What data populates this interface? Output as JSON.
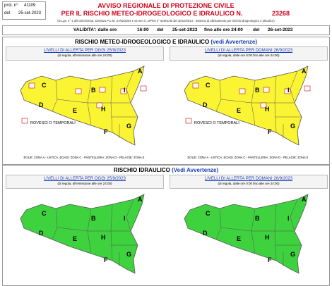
{
  "header": {
    "prot_label": "prot. n°",
    "prot_value": "41109",
    "del_label": "del",
    "del_value": "25-set-2023",
    "title_1": "AVVISO REGIONALE DI PROTEZIONE CIVILE",
    "title_2": "PER IL RISCHIO METEO-IDROGEOLOGICO E IDRAULICO N.",
    "number": "23268",
    "legal_note": "(D.Lgs. n° 1 del 02/01/2018, Direttiva P.C.M. 27/02/2004 e ss.mm.ii., DPRS n° 626/GAB del 30/10/2014 - Sistema di allertamento per rischio idrogeologico e idraulico)"
  },
  "validity": {
    "label": "VALIDITA': dalle ore",
    "start_time": "16:00",
    "del_1": "del",
    "start_date": "25-set-2023",
    "until": "fino alle ore 24:00",
    "del_2": "del",
    "end_date": "26-set-2023"
  },
  "sections": [
    {
      "title": "RISCHIO METEO-IDROGEOLOGICO E IDRAULICO",
      "title_note": "(vedi Avvertenze)",
      "panels": [
        {
          "heading": "LIVELLI DI ALLERTA PER OGGI 25/9/2023",
          "subheading": "(di regola, all'emissione alle ore 24:00)",
          "map": {
            "color": "#fbf433",
            "zones": [
              "A",
              "B",
              "C",
              "D",
              "E",
              "F",
              "G",
              "H",
              "I"
            ],
            "note": "ROVESCI O TEMPORALI"
          },
          "islands": "EOLIE: ZONA A - USTICA, EGADI: ZONA C - PANTELLERIA: ZONA D - PELAGIE: ZONA E"
        },
        {
          "heading": "LIVELLI DI ALLERTA PER DOMANI 26/9/2023",
          "subheading": "(di regola, dalle ore 0:00 fino alle ore 24:00)",
          "map": {
            "color": "#fbf433",
            "zones": [
              "A",
              "B",
              "C",
              "D",
              "E",
              "F",
              "G",
              "H",
              "I"
            ],
            "note": "ROVESCI O TEMPORALI"
          },
          "islands": "EOLIE: ZONA A - USTICA, EGADI: ZONA C - PANTELLERIA: ZONA D - PELAGIE: ZONA E"
        }
      ]
    },
    {
      "title": "RISCHIO IDRAULICO",
      "title_note": "(Vedi Avvertenze)",
      "panels": [
        {
          "heading": "LIVELLI DI ALLERTA PER OGGI 25/9/2023",
          "subheading": "(di regola, all'emissione alle ore 24:00)",
          "map": {
            "color": "#3fd23f",
            "zones": [
              "A",
              "B",
              "C",
              "D",
              "E",
              "F",
              "G",
              "H",
              "I"
            ]
          }
        },
        {
          "heading": "LIVELLI DI ALLERTA PER DOMANI 26/9/2023",
          "subheading": "(di regola, dalle ore 0:00 fino alle ore 24:00)",
          "map": {
            "color": "#3fd23f",
            "zones": [
              "A",
              "B",
              "C",
              "D",
              "E",
              "F",
              "G",
              "H",
              "I"
            ]
          }
        }
      ]
    }
  ]
}
